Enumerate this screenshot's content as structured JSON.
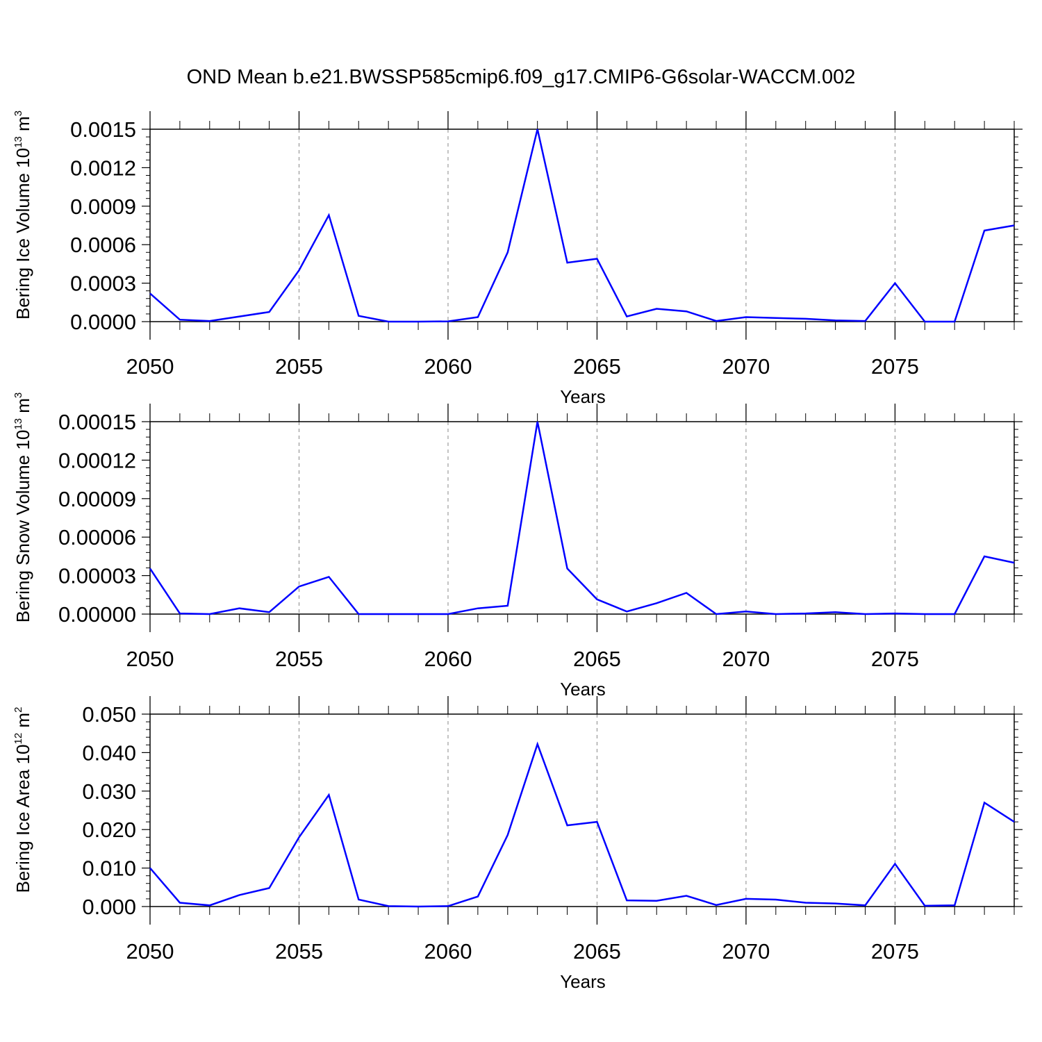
{
  "title": "OND Mean b.e21.BWSSP585cmip6.f09_g17.CMIP6-G6solar-WACCM.002",
  "chart_data": [
    {
      "type": "line",
      "title": "OND Mean b.e21.BWSSP585cmip6.f09_g17.CMIP6-G6solar-WACCM.002",
      "ylabel": "Bering Ice Volume",
      "ylabel_unit_base": "10",
      "ylabel_unit_exp": "13",
      "ylabel_unit_tail": " m",
      "ylabel_unit_exp2": "3",
      "xlabel": "Years",
      "xlim": [
        2050,
        2079
      ],
      "ylim": [
        0,
        0.0015
      ],
      "xticks": [
        2050,
        2055,
        2060,
        2065,
        2070,
        2075
      ],
      "xtick_labels": [
        "2050",
        "2055",
        "2060",
        "2065",
        "2070",
        "2075"
      ],
      "yticks": [
        0,
        0.0003,
        0.0006,
        0.0009,
        0.0012,
        0.0015
      ],
      "ytick_labels": [
        "0.0000",
        "0.0003",
        "0.0006",
        "0.0009",
        "0.0012",
        "0.0015"
      ],
      "grid": "vertical dashed at major x ticks",
      "line_color": "#0000ff",
      "x": [
        2050,
        2051,
        2052,
        2053,
        2054,
        2055,
        2056,
        2057,
        2058,
        2059,
        2060,
        2061,
        2062,
        2063,
        2064,
        2065,
        2066,
        2067,
        2068,
        2069,
        2070,
        2071,
        2072,
        2073,
        2074,
        2075,
        2076,
        2077,
        2078,
        2079
      ],
      "values": [
        0.00022,
        1.5e-05,
        5e-06,
        4e-05,
        7.5e-05,
        0.0004,
        0.00083,
        4.5e-05,
        0.0,
        0.0,
        2e-06,
        3.5e-05,
        0.00054,
        0.0015,
        0.00046,
        0.00049,
        4e-05,
        0.0001,
        8e-05,
        5e-06,
        3.5e-05,
        2.8e-05,
        2.2e-05,
        1e-05,
        5e-06,
        0.0003,
        0.0,
        0.0,
        0.00071,
        0.00075
      ]
    },
    {
      "type": "line",
      "ylabel": "Bering Snow Volume",
      "ylabel_unit_base": "10",
      "ylabel_unit_exp": "13",
      "ylabel_unit_tail": " m",
      "ylabel_unit_exp2": "3",
      "xlabel": "Years",
      "xlim": [
        2050,
        2079
      ],
      "ylim": [
        0,
        0.00015
      ],
      "xticks": [
        2050,
        2055,
        2060,
        2065,
        2070,
        2075
      ],
      "xtick_labels": [
        "2050",
        "2055",
        "2060",
        "2065",
        "2070",
        "2075"
      ],
      "yticks": [
        0,
        3e-05,
        6e-05,
        9e-05,
        0.00012,
        0.00015
      ],
      "ytick_labels": [
        "0.00000",
        "0.00003",
        "0.00006",
        "0.00009",
        "0.00012",
        "0.00015"
      ],
      "grid": "vertical dashed at major x ticks",
      "line_color": "#0000ff",
      "x": [
        2050,
        2051,
        2052,
        2053,
        2054,
        2055,
        2056,
        2057,
        2058,
        2059,
        2060,
        2061,
        2062,
        2063,
        2064,
        2065,
        2066,
        2067,
        2068,
        2069,
        2070,
        2071,
        2072,
        2073,
        2074,
        2075,
        2076,
        2077,
        2078,
        2079
      ],
      "values": [
        3.55e-05,
        5e-07,
        0.0,
        4.5e-06,
        1.5e-06,
        2.15e-05,
        2.9e-05,
        0.0,
        0.0,
        0.0,
        0.0,
        4.5e-06,
        6.5e-06,
        0.00015,
        3.55e-05,
        1.15e-05,
        2e-06,
        8.5e-06,
        1.65e-05,
        0.0,
        2e-06,
        0.0,
        5e-07,
        1.5e-06,
        0.0,
        5e-07,
        0.0,
        0.0,
        4.5e-05,
        4e-05
      ]
    },
    {
      "type": "line",
      "ylabel": "Bering Ice Area",
      "ylabel_unit_base": "10",
      "ylabel_unit_exp": "12",
      "ylabel_unit_tail": " m",
      "ylabel_unit_exp2": "2",
      "xlabel": "Years",
      "xlim": [
        2050,
        2079
      ],
      "ylim": [
        0,
        0.05
      ],
      "xticks": [
        2050,
        2055,
        2060,
        2065,
        2070,
        2075
      ],
      "xtick_labels": [
        "2050",
        "2055",
        "2060",
        "2065",
        "2070",
        "2075"
      ],
      "yticks": [
        0,
        0.01,
        0.02,
        0.03,
        0.04,
        0.05
      ],
      "ytick_labels": [
        "0.000",
        "0.010",
        "0.020",
        "0.030",
        "0.040",
        "0.050"
      ],
      "grid": "vertical dashed at major x ticks",
      "line_color": "#0000ff",
      "x": [
        2050,
        2051,
        2052,
        2053,
        2054,
        2055,
        2056,
        2057,
        2058,
        2059,
        2060,
        2061,
        2062,
        2063,
        2064,
        2065,
        2066,
        2067,
        2068,
        2069,
        2070,
        2071,
        2072,
        2073,
        2074,
        2075,
        2076,
        2077,
        2078,
        2079
      ],
      "values": [
        0.01,
        0.001,
        0.0003,
        0.003,
        0.0048,
        0.018,
        0.029,
        0.0018,
        0.0001,
        0.0,
        0.0001,
        0.0026,
        0.0186,
        0.0422,
        0.0211,
        0.022,
        0.0016,
        0.0015,
        0.0028,
        0.0004,
        0.002,
        0.0018,
        0.001,
        0.0008,
        0.0003,
        0.0111,
        0.0002,
        0.0003,
        0.027,
        0.022
      ]
    }
  ]
}
